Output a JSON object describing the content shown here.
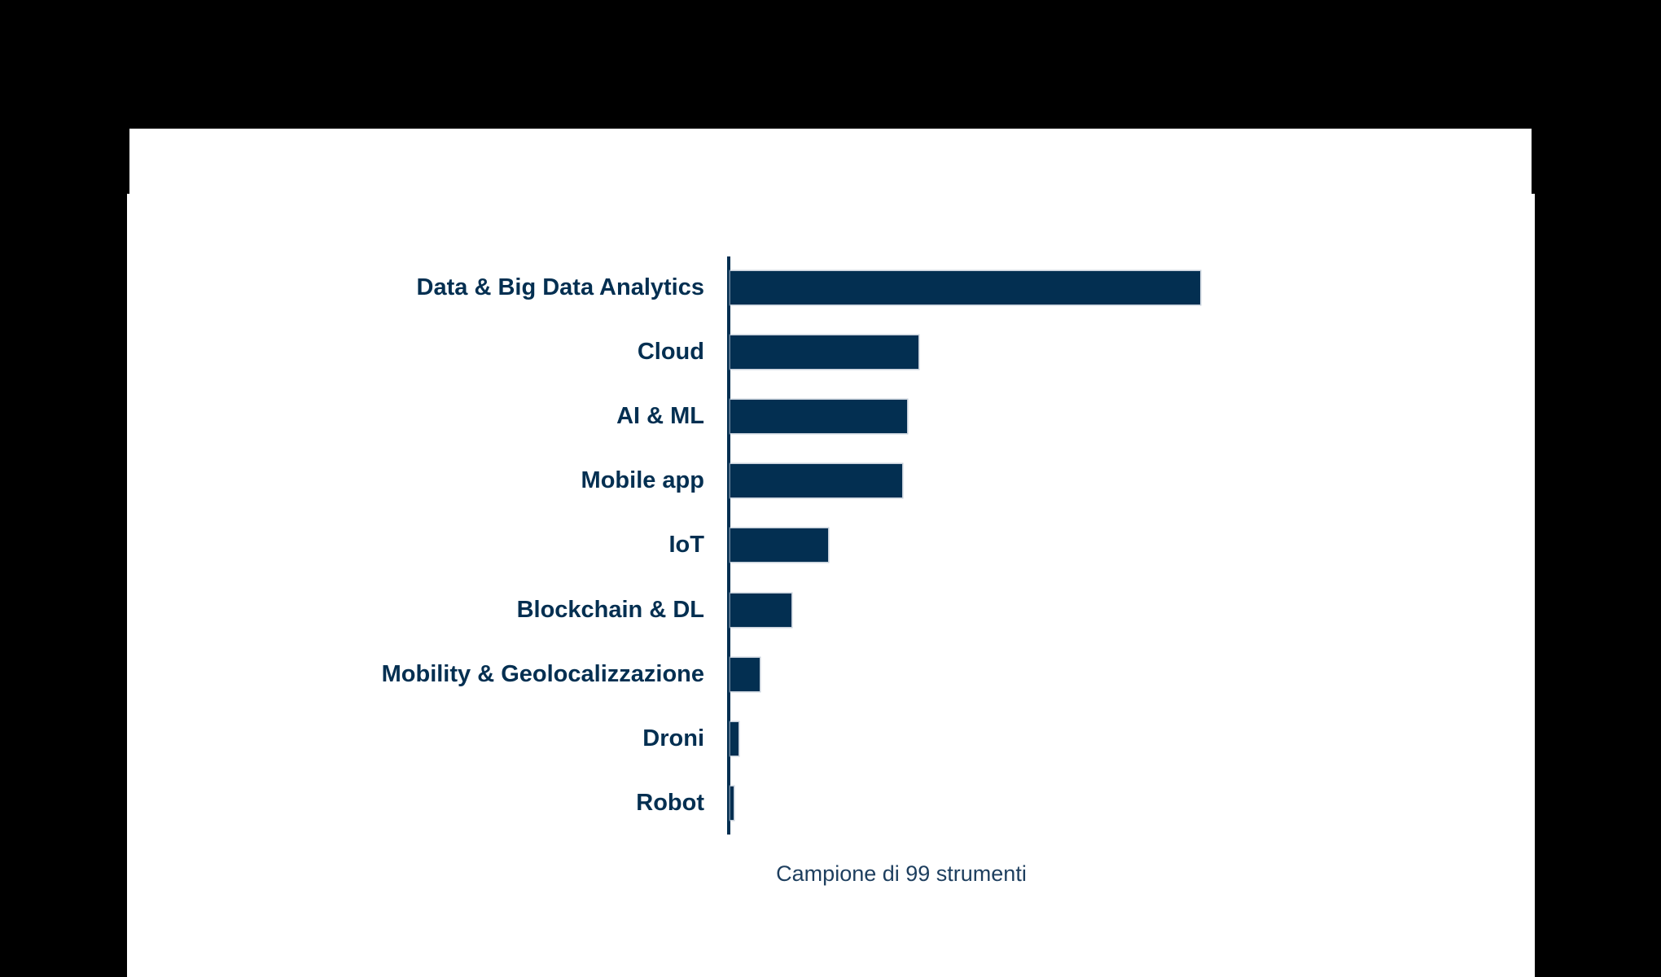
{
  "page": {
    "background_color": "#000000",
    "card_color": "#ffffff"
  },
  "chart_data": {
    "type": "bar",
    "orientation": "horizontal",
    "title": "",
    "categories": [
      "Data & Big Data Analytics",
      "Cloud",
      "AI & ML",
      "Mobile app",
      "IoT",
      "Blockchain & DL",
      "Mobility & Geolocalizzazione",
      "Droni",
      "Robot"
    ],
    "series": [
      {
        "name": "Strumenti",
        "values": [
          577,
          231,
          217,
          211,
          120,
          75,
          36,
          10,
          4
        ]
      }
    ],
    "values_unit": "bar length in px (chart shows no numeric axis or data labels)",
    "values_pct_of_max": [
      100,
      40.0,
      37.6,
      36.6,
      20.8,
      13.0,
      6.2,
      1.7,
      0.7
    ],
    "caption": "Campione di 99 strumenti",
    "sample_size": 99,
    "legend": "none",
    "grid": "off",
    "value_axis_visible": false,
    "bar_color": "#032f51",
    "bar_outline_color": "#a8b6c6",
    "label_color": "#032f51",
    "axis_color": "#032f51",
    "caption_color": "#1d3e5e"
  }
}
